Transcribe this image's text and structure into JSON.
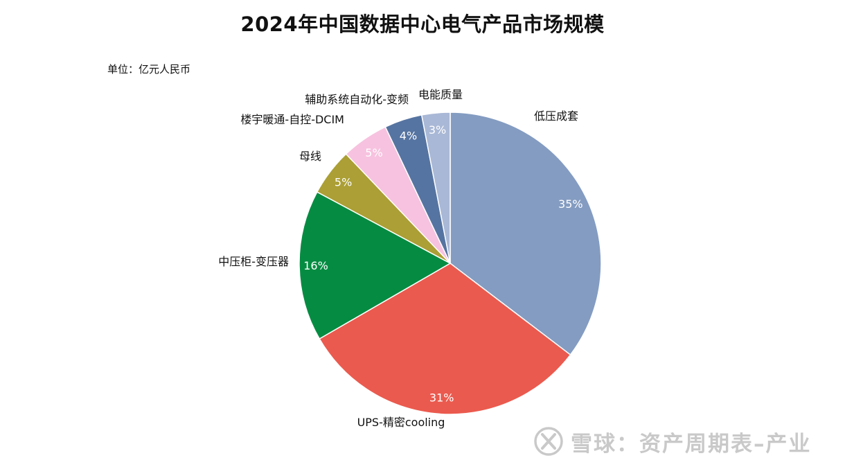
{
  "chart_data": {
    "type": "pie",
    "title": "2024年中国数据中心电气产品市场规模",
    "unit_label": "单位：亿元人民币",
    "start_angle_deg": 0,
    "direction": "clockwise",
    "slices": [
      {
        "name": "低压成套",
        "value": 35,
        "label": "35%",
        "color": "#849cc1"
      },
      {
        "name": "UPS-精密cooling",
        "value": 31,
        "label": "31%",
        "color": "#eb5a4e"
      },
      {
        "name": "中压柜-变压器",
        "value": 16,
        "label": "16%",
        "color": "#068c42"
      },
      {
        "name": "母线",
        "value": 5,
        "label": "5%",
        "color": "#ab9f35"
      },
      {
        "name": "楼宇暖通-自控-DCIM",
        "value": 5,
        "label": "5%",
        "color": "#f7c2df"
      },
      {
        "name": "辅助系统自动化-变频",
        "value": 4,
        "label": "4%",
        "color": "#5674a1"
      },
      {
        "name": "电能质量",
        "value": 3,
        "label": "3%",
        "color": "#a9b8d6"
      }
    ]
  },
  "watermark": {
    "text": "雪球：资产周期表–产业"
  }
}
